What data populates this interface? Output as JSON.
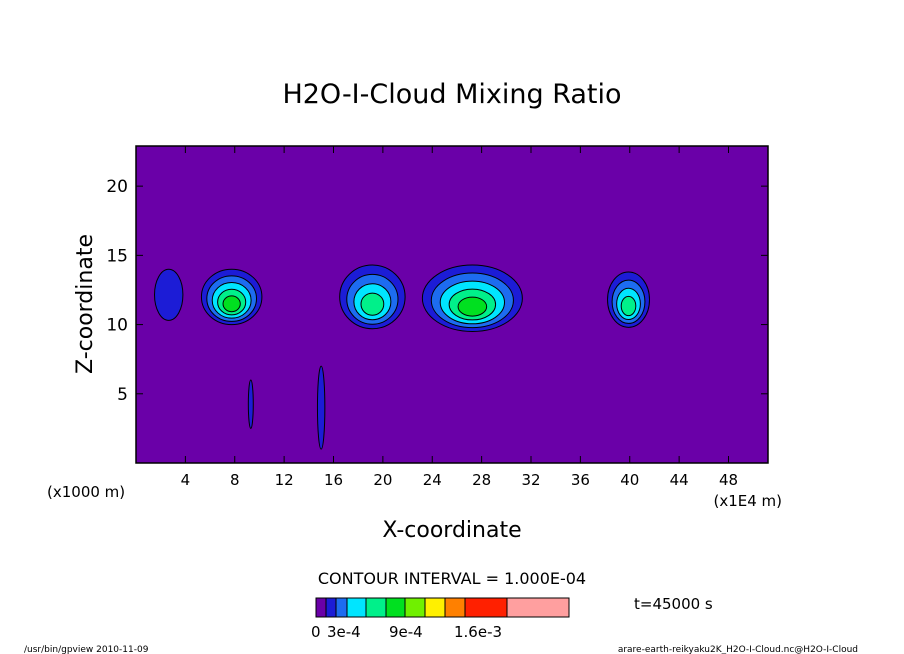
{
  "chart_data": {
    "type": "heatmap",
    "title": "H2O-I-Cloud Mixing Ratio",
    "xlabel": "X-coordinate",
    "ylabel": "Z-coordinate",
    "x_unit_left": "(x1000 m)",
    "x_unit_right": "(x1E4 m)",
    "xlim": [
      0,
      51.2
    ],
    "ylim": [
      0,
      22.9
    ],
    "x_ticks": [
      4,
      8,
      12,
      16,
      20,
      24,
      28,
      32,
      36,
      40,
      44,
      48
    ],
    "y_ticks": [
      5,
      10,
      15,
      20
    ],
    "contour_interval_label": "CONTOUR INTERVAL = 1.000E-04",
    "time_label": "t=45000 s",
    "background_color": "#6a00a8",
    "color_levels": [
      "#6a00a8",
      "#1c1cd6",
      "#1d6cf0",
      "#00e5ff",
      "#00f08a",
      "#00e020",
      "#70f000",
      "#fff000",
      "#ff8000",
      "#ff2000",
      "#ff9f9f"
    ],
    "colorbar_labels": [
      "0",
      "3e-4",
      "9e-4",
      "1.6e-3"
    ],
    "cloud_regions": [
      {
        "x_range": [
          1.5,
          3.8
        ],
        "z_range": [
          10.3,
          14.0
        ],
        "max_level": 1
      },
      {
        "x_range": [
          5.3,
          10.2
        ],
        "z_range": [
          10.0,
          14.0
        ],
        "max_level": 5
      },
      {
        "x_range": [
          16.5,
          21.8
        ],
        "z_range": [
          9.7,
          14.3
        ],
        "max_level": 4
      },
      {
        "x_range": [
          23.2,
          31.3
        ],
        "z_range": [
          9.5,
          14.3
        ],
        "max_level": 5
      },
      {
        "x_range": [
          38.2,
          41.6
        ],
        "z_range": [
          9.8,
          13.8
        ],
        "max_level": 4
      },
      {
        "x_range": [
          14.7,
          15.3
        ],
        "z_range": [
          1.0,
          7.0
        ],
        "max_level": 1
      },
      {
        "x_range": [
          9.1,
          9.5
        ],
        "z_range": [
          2.5,
          6.0
        ],
        "max_level": 1
      }
    ]
  },
  "footer": {
    "left": "/usr/bin/gpview  2010-11-09",
    "right": "arare-earth-reikyaku2K_H2O-I-Cloud.nc@H2O-I-Cloud"
  }
}
